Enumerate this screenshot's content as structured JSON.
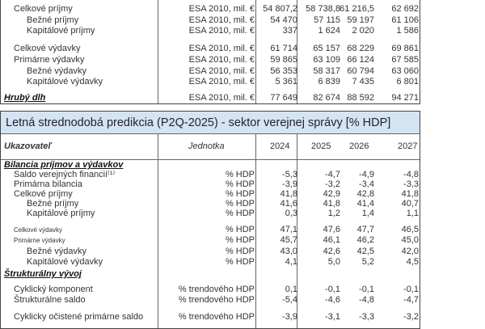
{
  "top_table": {
    "rows": [
      {
        "label": "Celkové príjmy",
        "indent": 1,
        "unit": "ESA 2010, mil. €",
        "values": [
          "54 807,2",
          "58 738,8",
          "61 216,5",
          "62 692"
        ]
      },
      {
        "label": "Bežné príjmy",
        "indent": 2,
        "unit": "ESA 2010, mil. €",
        "values": [
          "54 470",
          "57 115",
          "59 197",
          "61 106"
        ]
      },
      {
        "label": "Kapitálové príjmy",
        "indent": 2,
        "unit": "ESA 2010, mil. €",
        "values": [
          "337",
          "1 624",
          "2 020",
          "1 586"
        ]
      },
      {
        "label": "Celkové výdavky",
        "indent": 1,
        "unit": "ESA 2010, mil. €",
        "values": [
          "61 714",
          "65 157",
          "68 229",
          "69 861"
        ]
      },
      {
        "label": "Primárne výdavky",
        "indent": 1,
        "unit": "ESA 2010, mil. €",
        "values": [
          "59 865",
          "63 109",
          "66 124",
          "67 585"
        ]
      },
      {
        "label": "Bežné výdavky",
        "indent": 2,
        "unit": "ESA 2010, mil. €",
        "values": [
          "56 353",
          "58 317",
          "60 794",
          "63 060"
        ]
      },
      {
        "label": "Kapitálové výdavky",
        "indent": 2,
        "unit": "ESA 2010, mil. €",
        "values": [
          "5 361",
          "6 839",
          "7 435",
          "6 801"
        ]
      },
      {
        "label": "Hrubý dlh",
        "indent": 0,
        "section": true,
        "unit": "ESA 2010, mil. €",
        "values": [
          "77 649",
          "82 674",
          "88 592",
          "94 271"
        ]
      }
    ]
  },
  "bottom_table": {
    "title": "Letná strednodobá predikcia (P2Q-2025) - sektor verejnej správy [% HDP]",
    "header": {
      "indicator": "Ukazovateľ",
      "unit": "Jednotka",
      "years": [
        "2024",
        "2025",
        "2026",
        "2027"
      ]
    },
    "rows": [
      {
        "label": "Bilancia príjmov a výdavkov",
        "indent": 0,
        "section": true,
        "unit": "",
        "values": [
          "",
          "",
          "",
          ""
        ]
      },
      {
        "label": "Saldo verejných financií⁽¹⁾",
        "indent": 1,
        "unit": "% HDP",
        "values": [
          "-5,3",
          "-4,7",
          "-4,9",
          "-4,8"
        ]
      },
      {
        "label": "Primárna bilancia",
        "indent": 1,
        "unit": "% HDP",
        "values": [
          "-3,9",
          "-3,2",
          "-3,4",
          "-3,3"
        ]
      },
      {
        "label": "Celkové príjmy",
        "indent": 1,
        "unit": "% HDP",
        "values": [
          "41,8",
          "42,9",
          "42,8",
          "41,8"
        ]
      },
      {
        "label": "Bežné príjmy",
        "indent": 2,
        "unit": "% HDP",
        "values": [
          "41,6",
          "41,8",
          "41,4",
          "40,7"
        ]
      },
      {
        "label": "Kapitálové príjmy",
        "indent": 2,
        "unit": "% HDP",
        "values": [
          "0,3",
          "1,2",
          "1,4",
          "1,1"
        ]
      },
      {
        "label": "Celkové výdavky",
        "indent": 1,
        "small": true,
        "unit": "% HDP",
        "values": [
          "47,1",
          "47,6",
          "47,7",
          "46,5"
        ]
      },
      {
        "label": "Primárne výdavky",
        "indent": 1,
        "small": true,
        "unit": "% HDP",
        "values": [
          "45,7",
          "46,1",
          "46,2",
          "45,0"
        ]
      },
      {
        "label": "Bežné výdavky",
        "indent": 2,
        "unit": "% HDP",
        "values": [
          "43,0",
          "42,6",
          "42,5",
          "42,0"
        ]
      },
      {
        "label": "Kapitálové výdavky",
        "indent": 2,
        "unit": "% HDP",
        "values": [
          "4,1",
          "5,0",
          "5,2",
          "4,5"
        ]
      },
      {
        "label": "Štrukturálny vývoj",
        "indent": 0,
        "section": true,
        "unit": "",
        "values": [
          "",
          "",
          "",
          ""
        ]
      },
      {
        "label": "Cyklický komponent",
        "indent": 1,
        "unit": "% trendového HDP",
        "values": [
          "0,1",
          "-0,1",
          "-0,1",
          "-0,1"
        ]
      },
      {
        "label": "Štrukturálne saldo",
        "indent": 1,
        "unit": "% trendového HDP",
        "values": [
          "-5,4",
          "-4,6",
          "-4,8",
          "-4,7"
        ]
      },
      {
        "label": "Cyklicky očistené primárne saldo",
        "indent": 1,
        "unit": "% trendového HDP",
        "values": [
          "-3,9",
          "-3,1",
          "-3,3",
          "-3,2"
        ]
      }
    ]
  }
}
